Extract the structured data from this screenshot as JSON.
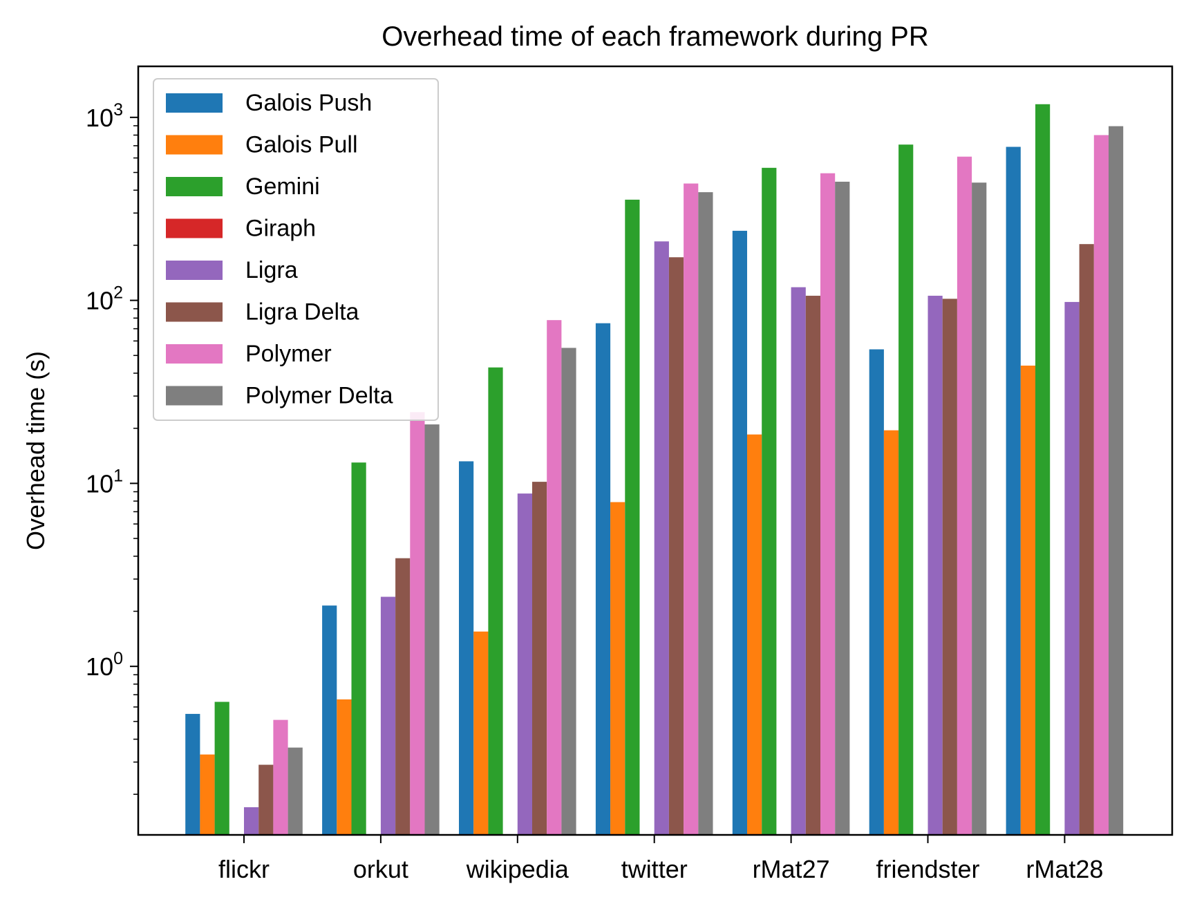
{
  "chart_data": {
    "type": "bar",
    "title": "Overhead time of each framework during PR",
    "xlabel": "",
    "ylabel": "Overhead time (s)",
    "yscale": "log",
    "ylim": [
      0.12,
      1900
    ],
    "yticks": [
      {
        "value": 1,
        "base": "10",
        "exp": "0"
      },
      {
        "value": 10,
        "base": "10",
        "exp": "1"
      },
      {
        "value": 100,
        "base": "10",
        "exp": "2"
      },
      {
        "value": 1000,
        "base": "10",
        "exp": "3"
      }
    ],
    "grid": false,
    "legend_position": "top-left",
    "categories": [
      "flickr",
      "orkut",
      "wikipedia",
      "twitter",
      "rMat27",
      "friendster",
      "rMat28"
    ],
    "series": [
      {
        "name": "Galois Push",
        "color": "#1f77b4",
        "values": [
          0.55,
          2.15,
          13.2,
          75,
          240,
          54,
          690
        ]
      },
      {
        "name": "Galois Pull",
        "color": "#ff7f0e",
        "values": [
          0.33,
          0.66,
          1.55,
          7.9,
          18.5,
          19.5,
          44
        ]
      },
      {
        "name": "Gemini",
        "color": "#2ca02c",
        "values": [
          0.64,
          13,
          43,
          355,
          530,
          710,
          1180
        ]
      },
      {
        "name": "Giraph",
        "color": "#d62728",
        "values": [
          null,
          null,
          null,
          null,
          null,
          null,
          null
        ]
      },
      {
        "name": "Ligra",
        "color": "#9467bd",
        "values": [
          0.17,
          2.4,
          8.8,
          210,
          118,
          106,
          98
        ]
      },
      {
        "name": "Ligra Delta",
        "color": "#8c564b",
        "values": [
          0.29,
          3.9,
          10.2,
          172,
          106,
          102,
          203
        ]
      },
      {
        "name": "Polymer",
        "color": "#e377c2",
        "values": [
          0.51,
          24.5,
          78,
          435,
          495,
          610,
          800
        ]
      },
      {
        "name": "Polymer Delta",
        "color": "#7f7f7f",
        "values": [
          0.36,
          21,
          55,
          390,
          445,
          440,
          895
        ]
      }
    ]
  }
}
